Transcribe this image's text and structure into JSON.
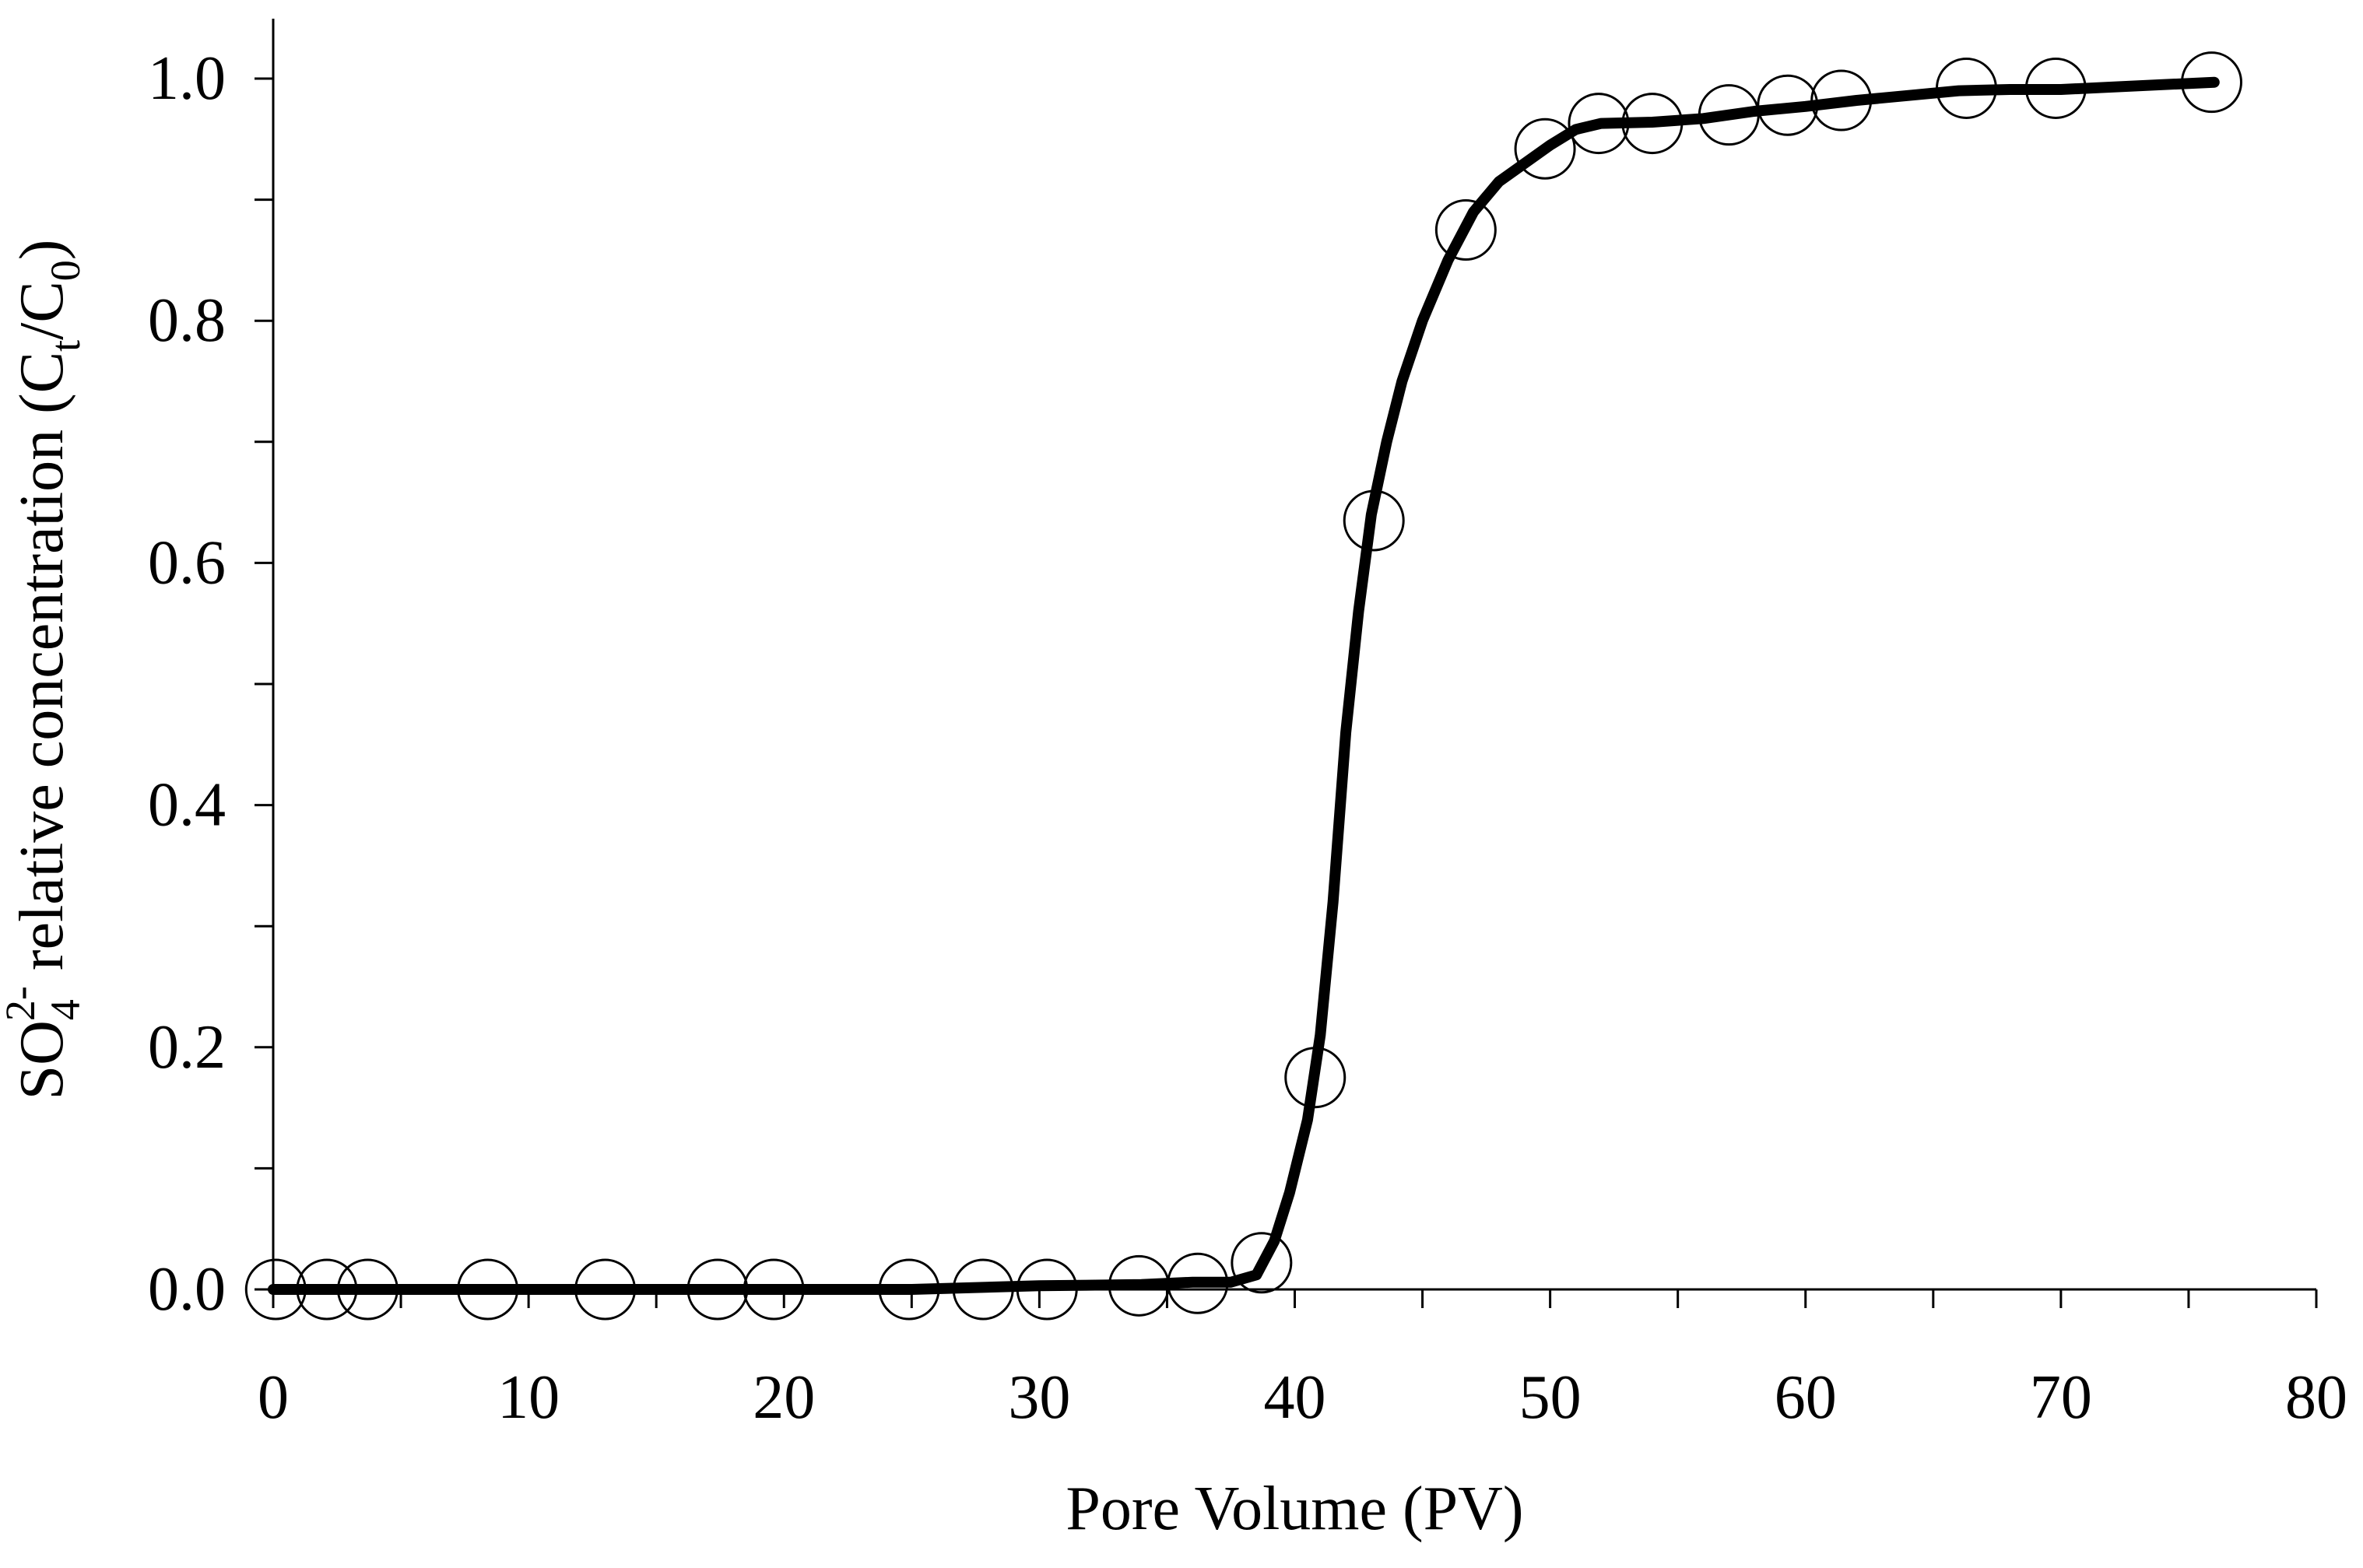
{
  "chart_data": {
    "type": "scatter",
    "title": "",
    "xlabel": "Pore Volume (PV)",
    "ylabel": {
      "prefix": "SO",
      "sub1": "4",
      "sup1": "2-",
      "middle": " relative concentration (C",
      "sub2": "t",
      "slash": "/C",
      "sub3": "0",
      "suffix": ")"
    },
    "xlim": [
      0,
      80
    ],
    "ylim": [
      0,
      1.0
    ],
    "xticks": [
      0,
      10,
      20,
      30,
      40,
      50,
      60,
      70,
      80
    ],
    "xtick_labels": [
      "0",
      "10",
      "20",
      "30",
      "40",
      "50",
      "60",
      "70",
      "80"
    ],
    "yticks": [
      0.0,
      0.2,
      0.4,
      0.6,
      0.8,
      1.0
    ],
    "ytick_labels": [
      "0.0",
      "0.2",
      "0.4",
      "0.6",
      "0.8",
      "1.0"
    ],
    "grid": false,
    "legend": "none",
    "series": [
      {
        "kind": "markers",
        "marker": "open-circle",
        "color": "#000000",
        "x": [
          0.1,
          2.1,
          3.7,
          8.4,
          13.0,
          17.4,
          19.6,
          24.9,
          27.8,
          30.3,
          33.9,
          36.2,
          38.7,
          40.8,
          43.1,
          46.7,
          49.8,
          51.9,
          54.0,
          57.0,
          59.3,
          61.4,
          66.3,
          69.8,
          75.9
        ],
        "y": [
          0.0,
          0.0,
          0.0,
          0.0,
          0.0,
          0.0,
          0.0,
          0.0,
          0.0,
          0.0,
          0.003,
          0.005,
          0.022,
          0.175,
          0.635,
          0.875,
          0.942,
          0.963,
          0.963,
          0.97,
          0.978,
          0.982,
          0.992,
          0.992,
          0.997
        ]
      },
      {
        "kind": "line",
        "color": "#000000",
        "x": [
          0,
          10,
          20,
          25,
          30,
          34,
          36,
          37.5,
          38.5,
          39.2,
          39.8,
          40.5,
          41.0,
          41.5,
          42.0,
          42.5,
          43.0,
          43.6,
          44.2,
          45.0,
          46.0,
          47.0,
          48.0,
          49.0,
          50.0,
          51.0,
          52.0,
          54.0,
          56.0,
          58.0,
          60.0,
          62.0,
          64.0,
          66.0,
          68.0,
          70.0,
          72.0,
          74.0,
          76.0
        ],
        "y": [
          0.0,
          0.0,
          0.0,
          0.0,
          0.003,
          0.004,
          0.006,
          0.006,
          0.012,
          0.04,
          0.08,
          0.14,
          0.21,
          0.32,
          0.46,
          0.56,
          0.64,
          0.7,
          0.75,
          0.8,
          0.85,
          0.89,
          0.915,
          0.93,
          0.945,
          0.958,
          0.963,
          0.964,
          0.967,
          0.973,
          0.977,
          0.982,
          0.986,
          0.99,
          0.991,
          0.991,
          0.993,
          0.995,
          0.997
        ]
      }
    ]
  }
}
